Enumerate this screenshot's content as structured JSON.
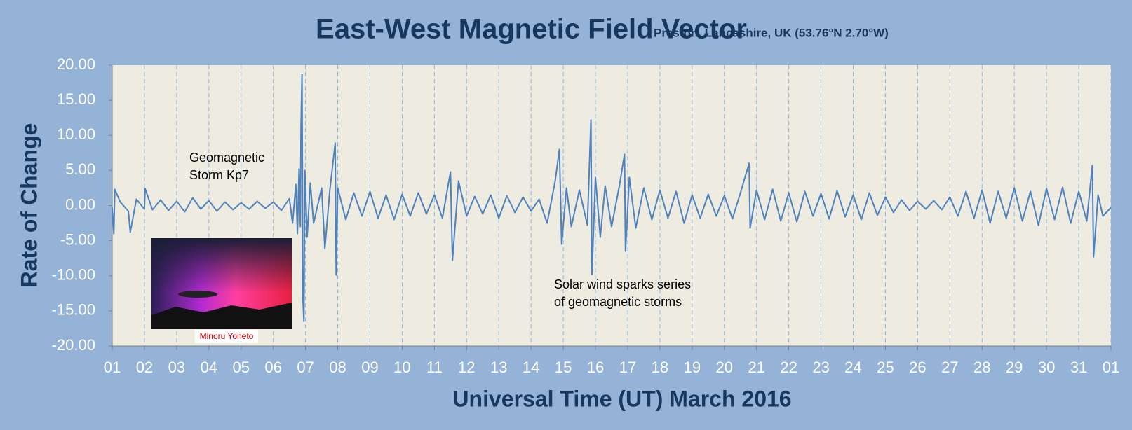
{
  "chart_data": {
    "type": "line",
    "title": "East-West Magnetic Field Vector",
    "subtitle": "Preston, Lancashire, UK  (53.76°N 2.70°W)",
    "y_label": "Rate of Change",
    "x_label": "Universal Time (UT) March 2016",
    "annotations": [
      {
        "lines": [
          "Geomagnetic",
          "Storm Kp7"
        ]
      },
      {
        "lines": [
          "Solar wind sparks series",
          "of  geomagnetic storms"
        ]
      }
    ],
    "image_credit": "Minoru Yoneto",
    "color": "#4f81bd",
    "grid": true,
    "xlim": [
      1,
      32
    ],
    "ylim": [
      -20,
      20
    ],
    "yticks": [
      {
        "value": -20,
        "label": "-20.00"
      },
      {
        "value": -15,
        "label": "-15.00"
      },
      {
        "value": -10,
        "label": "-10.00"
      },
      {
        "value": -5,
        "label": "-5.00"
      },
      {
        "value": 0,
        "label": "0.00"
      },
      {
        "value": 5,
        "label": "5.00"
      },
      {
        "value": 10,
        "label": "10.00"
      },
      {
        "value": 15,
        "label": "15.00"
      },
      {
        "value": 20,
        "label": "20.00"
      }
    ],
    "xticks": [
      {
        "value": 1,
        "label": "01"
      },
      {
        "value": 2,
        "label": "02"
      },
      {
        "value": 3,
        "label": "03"
      },
      {
        "value": 4,
        "label": "04"
      },
      {
        "value": 5,
        "label": "05"
      },
      {
        "value": 6,
        "label": "06"
      },
      {
        "value": 7,
        "label": "07"
      },
      {
        "value": 8,
        "label": "08"
      },
      {
        "value": 9,
        "label": "09"
      },
      {
        "value": 10,
        "label": "10"
      },
      {
        "value": 11,
        "label": "11"
      },
      {
        "value": 12,
        "label": "12"
      },
      {
        "value": 13,
        "label": "13"
      },
      {
        "value": 14,
        "label": "14"
      },
      {
        "value": 15,
        "label": "15"
      },
      {
        "value": 16,
        "label": "16"
      },
      {
        "value": 17,
        "label": "17"
      },
      {
        "value": 18,
        "label": "18"
      },
      {
        "value": 19,
        "label": "19"
      },
      {
        "value": 20,
        "label": "20"
      },
      {
        "value": 21,
        "label": "21"
      },
      {
        "value": 22,
        "label": "22"
      },
      {
        "value": 23,
        "label": "23"
      },
      {
        "value": 24,
        "label": "24"
      },
      {
        "value": 25,
        "label": "25"
      },
      {
        "value": 26,
        "label": "26"
      },
      {
        "value": 27,
        "label": "27"
      },
      {
        "value": 28,
        "label": "28"
      },
      {
        "value": 29,
        "label": "29"
      },
      {
        "value": 30,
        "label": "30"
      },
      {
        "value": 31,
        "label": "31"
      },
      {
        "value": 32,
        "label": "01"
      }
    ],
    "x": [
      1,
      1.05,
      1.08,
      1.25,
      1.5,
      1.56,
      1.75,
      2,
      2.02,
      2.25,
      2.5,
      2.75,
      3,
      3.25,
      3.5,
      3.75,
      4,
      4.25,
      4.5,
      4.75,
      5,
      5.25,
      5.5,
      5.75,
      6,
      6.25,
      6.5,
      6.6,
      6.7,
      6.75,
      6.8,
      6.84,
      6.86,
      6.89,
      6.92,
      6.95,
      6.98,
      7.05,
      7.15,
      7.25,
      7.5,
      7.6,
      7.75,
      7.92,
      7.95,
      8,
      8.25,
      8.5,
      8.75,
      9,
      9.25,
      9.5,
      9.75,
      10,
      10.25,
      10.5,
      10.75,
      11,
      11.25,
      11.5,
      11.56,
      11.75,
      12,
      12.25,
      12.5,
      12.75,
      13,
      13.25,
      13.5,
      13.75,
      14,
      14.25,
      14.5,
      14.75,
      14.88,
      14.95,
      15.1,
      15.25,
      15.5,
      15.75,
      15.86,
      15.89,
      16,
      16.15,
      16.3,
      16.5,
      16.75,
      16.9,
      16.93,
      17.05,
      17.25,
      17.5,
      17.75,
      18,
      18.25,
      18.5,
      18.75,
      19,
      19.25,
      19.5,
      19.75,
      20,
      20.25,
      20.5,
      20.77,
      20.8,
      21,
      21.25,
      21.5,
      21.75,
      22,
      22.25,
      22.5,
      22.75,
      23,
      23.25,
      23.5,
      23.75,
      24,
      24.25,
      24.5,
      24.75,
      25,
      25.25,
      25.5,
      25.75,
      26,
      26.25,
      26.5,
      26.75,
      27,
      27.25,
      27.5,
      27.75,
      28,
      28.25,
      28.5,
      28.75,
      29,
      29.25,
      29.5,
      29.75,
      30,
      30.25,
      30.5,
      30.75,
      31,
      31.25,
      31.42,
      31.46,
      31.6,
      31.75,
      32
    ],
    "values": [
      -0.3,
      -4,
      2.3,
      0.5,
      -0.8,
      -3.8,
      0.9,
      -0.5,
      2.4,
      -0.6,
      0.8,
      -0.7,
      0.6,
      -0.9,
      1.1,
      -0.5,
      0.7,
      -0.8,
      0.5,
      -0.6,
      0.4,
      -0.5,
      0.6,
      -0.4,
      0.5,
      -0.7,
      1.0,
      -2.5,
      3.0,
      -4.0,
      5.2,
      -3,
      11.2,
      18.7,
      -13.2,
      -16.5,
      5.0,
      -4.5,
      3.2,
      -2.5,
      2.5,
      -6.1,
      2.0,
      8.9,
      -9.9,
      2.5,
      -2.0,
      1.8,
      -1.5,
      2.0,
      -1.8,
      1.5,
      -2.0,
      1.6,
      -1.5,
      1.8,
      -1.2,
      1.5,
      -1.8,
      4.8,
      -7.8,
      3.5,
      -1.5,
      1.3,
      -1.2,
      1.5,
      -1.8,
      1.4,
      -1.0,
      1.2,
      -0.8,
      0.9,
      -2.5,
      3.5,
      8.0,
      -5.5,
      2.5,
      -3.0,
      2.2,
      -2.8,
      12.2,
      -9.8,
      4.0,
      -4.5,
      2.8,
      -3.0,
      3.0,
      7.3,
      -6.5,
      4.0,
      -3.2,
      2.5,
      -2.0,
      2.2,
      -1.8,
      2.0,
      -2.5,
      1.5,
      -1.8,
      1.6,
      -1.5,
      1.4,
      -1.9,
      1.8,
      6.0,
      -3.2,
      2.2,
      -2.0,
      2.3,
      -2.2,
      1.8,
      -2.3,
      2.0,
      -1.5,
      1.7,
      -1.9,
      2.1,
      -1.6,
      1.5,
      -2.0,
      1.8,
      -1.4,
      1.2,
      -1.0,
      0.8,
      -0.7,
      0.6,
      -0.5,
      0.7,
      -0.6,
      1.2,
      -1.5,
      2.0,
      -1.8,
      2.2,
      -2.5,
      2.0,
      -1.8,
      2.5,
      -2.2,
      2.0,
      -2.8,
      2.4,
      -2.0,
      2.6,
      -2.5,
      2.0,
      -2.2,
      5.7,
      -7.3,
      1.5,
      -1.5,
      -0.3
    ]
  }
}
